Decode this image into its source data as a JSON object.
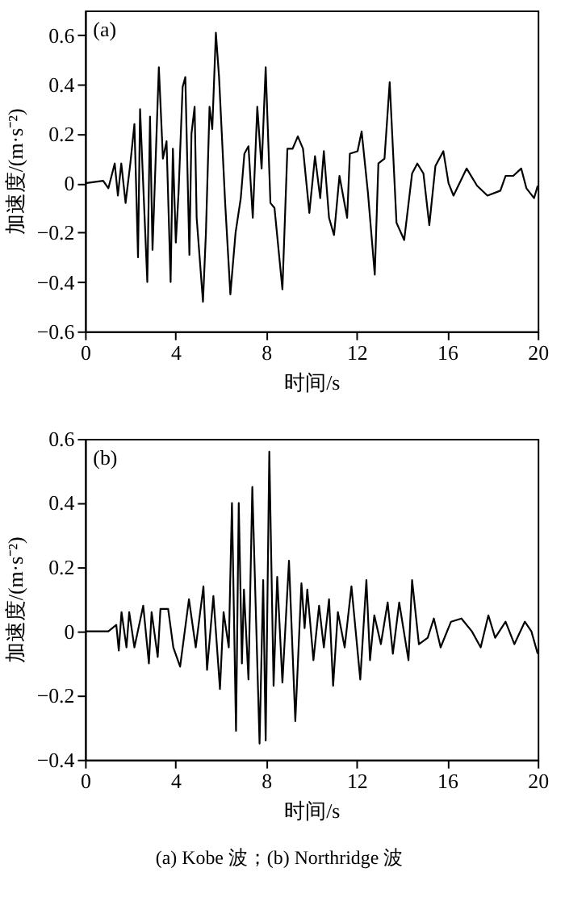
{
  "chart_data": [
    {
      "type": "line",
      "xlabel": "时间/s",
      "ylabel": "加速度/(m·s⁻²)",
      "annotations": [
        "(a)"
      ],
      "xlim": [
        0,
        20
      ],
      "xticks": [
        0,
        4,
        8,
        12,
        16,
        20
      ],
      "ylim": [
        -0.6,
        0.7
      ],
      "yticks": [
        -0.6,
        -0.4,
        -0.2,
        0,
        0.2,
        0.4,
        0.6
      ],
      "grid": false,
      "marker": "none",
      "line_style": "solid",
      "series": [
        {
          "color": "#000000",
          "x": [
            0,
            0.8,
            1.03,
            1.31,
            1.45,
            1.6,
            1.79,
            2.0,
            2.18,
            2.25,
            2.34,
            2.43,
            2.75,
            2.87,
            2.98,
            3.26,
            3.44,
            3.6,
            3.78,
            3.88,
            4.01,
            4.13,
            4.31,
            4.43,
            4.61,
            4.7,
            4.84,
            4.93,
            5.21,
            5.34,
            5.5,
            5.62,
            5.78,
            5.92,
            6.19,
            6.42,
            6.65,
            6.88,
            7.04,
            7.22,
            7.41,
            7.61,
            7.8,
            7.98,
            8.19,
            8.37,
            8.72,
            8.94,
            9.17,
            9.4,
            9.63,
            9.91,
            10.16,
            10.39,
            10.55,
            10.78,
            11.0,
            11.24,
            11.58,
            11.7,
            12.04,
            12.22,
            12.5,
            12.8,
            12.96,
            13.23,
            13.46,
            13.76,
            14.1,
            14.45,
            14.68,
            14.95,
            15.21,
            15.48,
            15.83,
            16.06,
            16.28,
            16.86,
            17.32,
            17.78,
            18.35,
            18.58,
            18.92,
            19.27,
            19.5,
            19.84,
            20
          ],
          "values": [
            0,
            0.01,
            -0.02,
            0.08,
            -0.05,
            0.08,
            -0.08,
            0.08,
            0.24,
            0.01,
            -0.3,
            0.3,
            -0.4,
            0.27,
            -0.27,
            0.47,
            0.1,
            0.17,
            -0.4,
            0.14,
            -0.24,
            -0.04,
            0.39,
            0.43,
            -0.29,
            0.2,
            0.31,
            -0.14,
            -0.48,
            -0.2,
            0.31,
            0.22,
            0.61,
            0.43,
            -0.08,
            -0.45,
            -0.2,
            -0.06,
            0.12,
            0.15,
            -0.14,
            0.31,
            0.06,
            0.47,
            -0.08,
            -0.1,
            -0.43,
            0.14,
            0.14,
            0.19,
            0.14,
            -0.12,
            0.11,
            -0.06,
            0.13,
            -0.14,
            -0.21,
            0.03,
            -0.14,
            0.12,
            0.13,
            0.21,
            -0.04,
            -0.37,
            0.08,
            0.1,
            0.41,
            -0.16,
            -0.23,
            0.04,
            0.08,
            0.04,
            -0.17,
            0.07,
            0.13,
            0,
            -0.05,
            0.06,
            -0.01,
            -0.05,
            -0.03,
            0.03,
            0.03,
            0.06,
            -0.02,
            -0.06,
            -0.01
          ]
        }
      ]
    },
    {
      "type": "line",
      "xlabel": "时间/s",
      "ylabel": "加速度/(m·s⁻²)",
      "annotations": [
        "(b)",
        "(a) Kobe 波；(b) Northridge 波"
      ],
      "xlim": [
        0,
        20
      ],
      "xticks": [
        0,
        4,
        8,
        12,
        16,
        20
      ],
      "ylim": [
        -0.4,
        0.6
      ],
      "yticks": [
        -0.4,
        -0.2,
        0,
        0.2,
        0.4,
        0.6
      ],
      "grid": false,
      "marker": "none",
      "line_style": "solid",
      "series": [
        {
          "color": "#000000",
          "x": [
            0,
            0.57,
            1.03,
            1.38,
            1.49,
            1.61,
            1.83,
            1.95,
            2.18,
            2.57,
            2.82,
            2.94,
            3.21,
            3.33,
            3.67,
            3.9,
            4.2,
            4.59,
            4.89,
            5.23,
            5.39,
            5.67,
            5.96,
            6.12,
            6.35,
            6.49,
            6.67,
            6.79,
            6.93,
            7.02,
            7.22,
            7.39,
            7.71,
            7.87,
            7.98,
            8.14,
            8.33,
            8.49,
            8.72,
            9.01,
            9.29,
            9.56,
            9.7,
            9.82,
            10.09,
            10.34,
            10.55,
            10.78,
            10.96,
            11.17,
            11.47,
            11.77,
            12.16,
            12.43,
            12.59,
            12.78,
            13.07,
            13.37,
            13.6,
            13.88,
            14.29,
            14.45,
            14.75,
            15.14,
            15.41,
            15.71,
            16.17,
            16.63,
            17.09,
            17.48,
            17.82,
            18.12,
            18.58,
            18.97,
            19.43,
            19.72,
            20
          ],
          "values": [
            0,
            0,
            0,
            0.02,
            -0.06,
            0.06,
            -0.05,
            0.06,
            -0.05,
            0.08,
            -0.1,
            0.06,
            -0.08,
            0.07,
            0.07,
            -0.05,
            -0.11,
            0.1,
            -0.05,
            0.14,
            -0.12,
            0.11,
            -0.18,
            0.06,
            -0.05,
            0.4,
            -0.31,
            0.4,
            -0.1,
            0.13,
            -0.15,
            0.45,
            -0.35,
            0.16,
            -0.34,
            0.56,
            -0.17,
            0.17,
            -0.16,
            0.22,
            -0.28,
            0.15,
            0.01,
            0.13,
            -0.09,
            0.08,
            -0.05,
            0.1,
            -0.17,
            0.06,
            -0.05,
            0.14,
            -0.15,
            0.16,
            -0.09,
            0.05,
            -0.04,
            0.09,
            -0.07,
            0.09,
            -0.09,
            0.16,
            -0.04,
            -0.02,
            0.04,
            -0.05,
            0.03,
            0.04,
            0,
            -0.05,
            0.05,
            -0.02,
            0.03,
            -0.04,
            0.03,
            0,
            -0.07
          ]
        }
      ]
    }
  ]
}
